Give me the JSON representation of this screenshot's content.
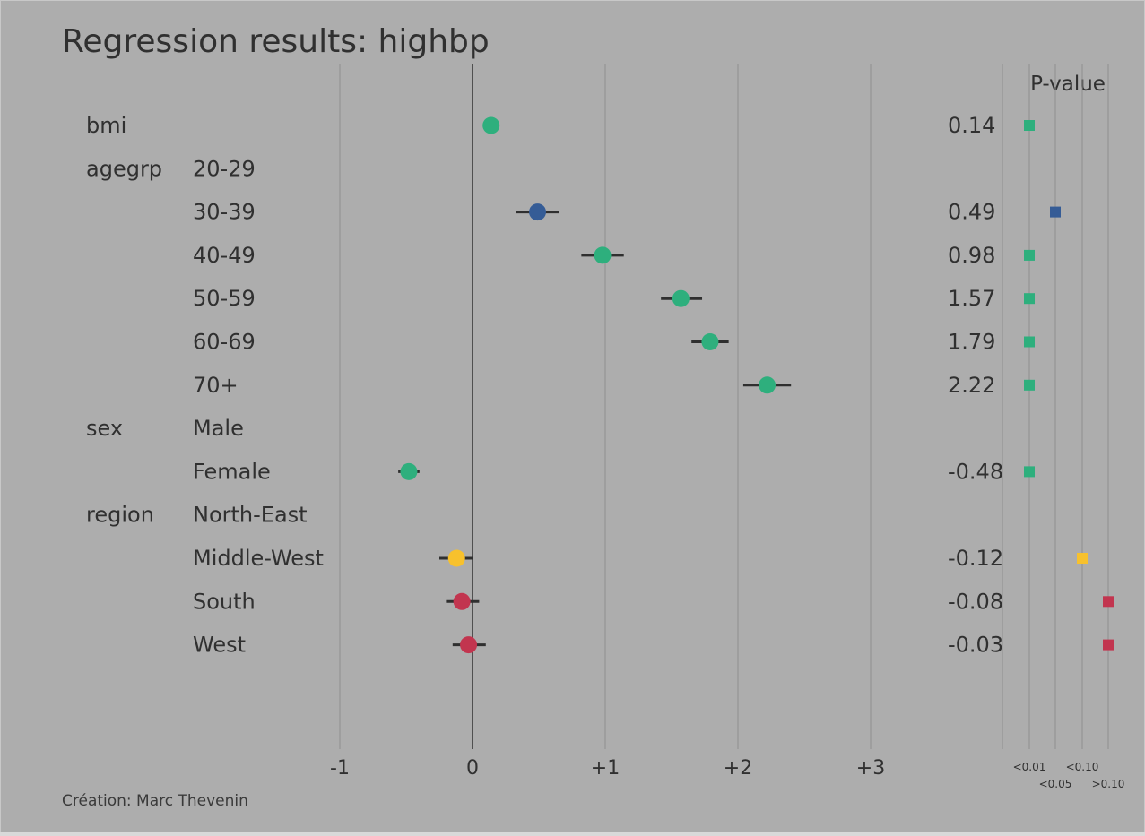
{
  "title": "Regression results: highbp",
  "caption": "Création: Marc Thevenin",
  "pvalue_header": "P-value",
  "colors": {
    "background": "#adadad",
    "lt001": "#2eaf7d",
    "lt005": "#355c96",
    "lt010": "#f7c12d",
    "gt010": "#c2354f"
  },
  "chart_data": {
    "type": "forest",
    "title": "Regression results: highbp",
    "xlim": [
      -1,
      3
    ],
    "x_ticks": [
      "-1",
      "0",
      "+1",
      "+2",
      "+3"
    ],
    "pvalue_ticks": [
      "<0.01",
      "<0.05",
      "<0.10",
      ">0.10"
    ],
    "rows": [
      {
        "variable": "bmi",
        "level": "",
        "coef": 0.14,
        "label": "0.14",
        "ci": [
          0.12,
          0.16
        ],
        "pclass": "<0.01"
      },
      {
        "variable": "agegrp",
        "level": "20-29",
        "coef": null,
        "label": "",
        "pclass": null
      },
      {
        "variable": "",
        "level": "30-39",
        "coef": 0.49,
        "label": "0.49",
        "ci": [
          0.33,
          0.65
        ],
        "pclass": "<0.05"
      },
      {
        "variable": "",
        "level": "40-49",
        "coef": 0.98,
        "label": "0.98",
        "ci": [
          0.82,
          1.14
        ],
        "pclass": "<0.01"
      },
      {
        "variable": "",
        "level": "50-59",
        "coef": 1.57,
        "label": "1.57",
        "ci": [
          1.42,
          1.73
        ],
        "pclass": "<0.01"
      },
      {
        "variable": "",
        "level": "60-69",
        "coef": 1.79,
        "label": "1.79",
        "ci": [
          1.65,
          1.93
        ],
        "pclass": "<0.01"
      },
      {
        "variable": "",
        "level": "70+",
        "coef": 2.22,
        "label": "2.22",
        "ci": [
          2.04,
          2.4
        ],
        "pclass": "<0.01"
      },
      {
        "variable": "sex",
        "level": "Male",
        "coef": null,
        "label": "",
        "pclass": null
      },
      {
        "variable": "",
        "level": "Female",
        "coef": -0.48,
        "label": "-0.48",
        "ci": [
          -0.56,
          -0.4
        ],
        "pclass": "<0.01"
      },
      {
        "variable": "region",
        "level": "North-East",
        "coef": null,
        "label": "",
        "pclass": null
      },
      {
        "variable": "",
        "level": "Middle-West",
        "coef": -0.12,
        "label": "-0.12",
        "ci": [
          -0.25,
          0.0
        ],
        "pclass": "<0.10"
      },
      {
        "variable": "",
        "level": "South",
        "coef": -0.08,
        "label": "-0.08",
        "ci": [
          -0.2,
          0.05
        ],
        "pclass": ">0.10"
      },
      {
        "variable": "",
        "level": "West",
        "coef": -0.03,
        "label": "-0.03",
        "ci": [
          -0.15,
          0.1
        ],
        "pclass": ">0.10"
      }
    ]
  }
}
